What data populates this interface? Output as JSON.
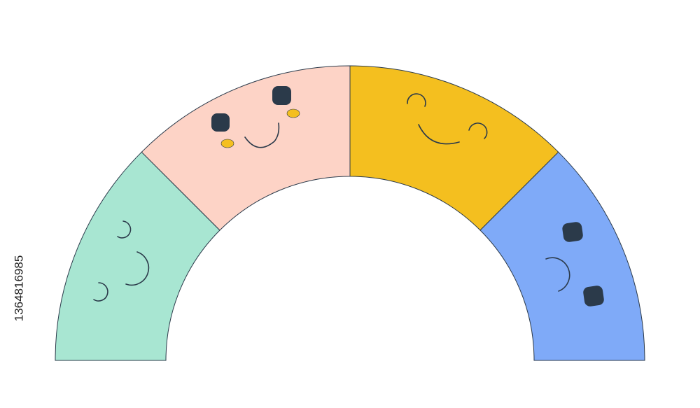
{
  "watermark_id": "1364816985"
}
